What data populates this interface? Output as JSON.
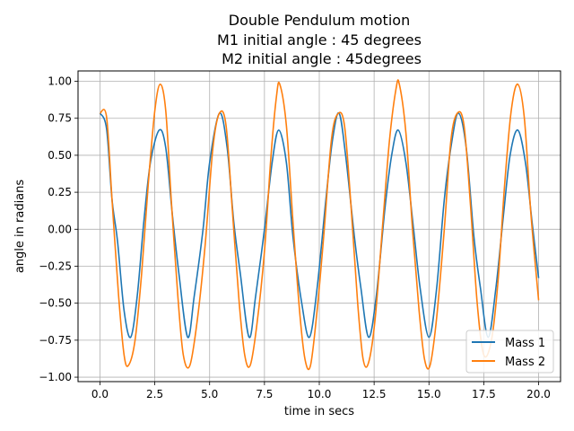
{
  "chart_data": {
    "type": "line",
    "title_lines": [
      "Double Pendulum motion",
      "M1 initial angle : 45 degrees",
      " M2 initial angle : 45degrees"
    ],
    "xlabel": "time in secs",
    "ylabel": "angle in radians",
    "xlim": [
      -1.0,
      21.0
    ],
    "ylim": [
      -1.03,
      1.07
    ],
    "x_ticks": [
      0.0,
      2.5,
      5.0,
      7.5,
      10.0,
      12.5,
      15.0,
      17.5,
      20.0
    ],
    "x_tick_labels": [
      "0.0",
      "2.5",
      "5.0",
      "7.5",
      "10.0",
      "12.5",
      "15.0",
      "17.5",
      "20.0"
    ],
    "y_ticks": [
      -1.0,
      -0.75,
      -0.5,
      -0.25,
      0.0,
      0.25,
      0.5,
      0.75,
      1.0
    ],
    "y_tick_labels": [
      "−1.00",
      "−0.75",
      "−0.50",
      "−0.25",
      "0.00",
      "0.25",
      "0.50",
      "0.75",
      "1.00"
    ],
    "grid": true,
    "legend_position": "lower-right",
    "series": [
      {
        "name": "Mass 1",
        "color": "#1f77b4",
        "points": [
          [
            0.0,
            0.785
          ],
          [
            0.3,
            0.68
          ],
          [
            0.55,
            0.2
          ],
          [
            0.8,
            -0.08
          ],
          [
            1.1,
            -0.55
          ],
          [
            1.4,
            -0.73
          ],
          [
            1.7,
            -0.45
          ],
          [
            2.0,
            0.05
          ],
          [
            2.3,
            0.45
          ],
          [
            2.7,
            0.67
          ],
          [
            3.0,
            0.55
          ],
          [
            3.3,
            0.1
          ],
          [
            3.6,
            -0.3
          ],
          [
            4.0,
            -0.73
          ],
          [
            4.3,
            -0.45
          ],
          [
            4.7,
            0.0
          ],
          [
            5.0,
            0.45
          ],
          [
            5.45,
            0.785
          ],
          [
            5.8,
            0.55
          ],
          [
            6.1,
            0.05
          ],
          [
            6.4,
            -0.3
          ],
          [
            6.8,
            -0.73
          ],
          [
            7.1,
            -0.45
          ],
          [
            7.5,
            0.0
          ],
          [
            7.85,
            0.45
          ],
          [
            8.15,
            0.67
          ],
          [
            8.5,
            0.45
          ],
          [
            8.8,
            -0.05
          ],
          [
            9.2,
            -0.5
          ],
          [
            9.55,
            -0.73
          ],
          [
            9.9,
            -0.4
          ],
          [
            10.3,
            0.2
          ],
          [
            10.6,
            0.6
          ],
          [
            10.9,
            0.785
          ],
          [
            11.2,
            0.5
          ],
          [
            11.6,
            -0.05
          ],
          [
            11.9,
            -0.4
          ],
          [
            12.25,
            -0.73
          ],
          [
            12.6,
            -0.45
          ],
          [
            13.0,
            0.15
          ],
          [
            13.3,
            0.5
          ],
          [
            13.6,
            0.67
          ],
          [
            13.95,
            0.45
          ],
          [
            14.3,
            0.0
          ],
          [
            14.6,
            -0.4
          ],
          [
            15.0,
            -0.73
          ],
          [
            15.35,
            -0.4
          ],
          [
            15.7,
            0.2
          ],
          [
            16.05,
            0.6
          ],
          [
            16.35,
            0.785
          ],
          [
            16.7,
            0.55
          ],
          [
            17.05,
            -0.05
          ],
          [
            17.35,
            -0.4
          ],
          [
            17.7,
            -0.73
          ],
          [
            18.05,
            -0.4
          ],
          [
            18.4,
            0.1
          ],
          [
            18.7,
            0.5
          ],
          [
            19.05,
            0.67
          ],
          [
            19.4,
            0.45
          ],
          [
            19.7,
            0.05
          ],
          [
            20.0,
            -0.33
          ]
        ]
      },
      {
        "name": "Mass 2",
        "color": "#ff7f0e",
        "points": [
          [
            0.0,
            0.785
          ],
          [
            0.3,
            0.76
          ],
          [
            0.55,
            0.2
          ],
          [
            0.85,
            -0.45
          ],
          [
            1.1,
            -0.85
          ],
          [
            1.3,
            -0.92
          ],
          [
            1.6,
            -0.75
          ],
          [
            1.9,
            -0.3
          ],
          [
            2.2,
            0.3
          ],
          [
            2.5,
            0.8
          ],
          [
            2.75,
            0.98
          ],
          [
            3.0,
            0.8
          ],
          [
            3.25,
            0.2
          ],
          [
            3.55,
            -0.45
          ],
          [
            3.8,
            -0.85
          ],
          [
            4.1,
            -0.92
          ],
          [
            4.45,
            -0.6
          ],
          [
            4.8,
            -0.1
          ],
          [
            5.15,
            0.55
          ],
          [
            5.45,
            0.785
          ],
          [
            5.75,
            0.7
          ],
          [
            6.05,
            0.1
          ],
          [
            6.35,
            -0.5
          ],
          [
            6.6,
            -0.85
          ],
          [
            6.85,
            -0.92
          ],
          [
            7.15,
            -0.65
          ],
          [
            7.5,
            -0.15
          ],
          [
            7.8,
            0.5
          ],
          [
            8.05,
            0.9
          ],
          [
            8.2,
            0.98
          ],
          [
            8.5,
            0.7
          ],
          [
            8.8,
            0.05
          ],
          [
            9.1,
            -0.55
          ],
          [
            9.35,
            -0.88
          ],
          [
            9.6,
            -0.92
          ],
          [
            9.9,
            -0.55
          ],
          [
            10.2,
            -0.05
          ],
          [
            10.55,
            0.6
          ],
          [
            10.85,
            0.78
          ],
          [
            11.15,
            0.7
          ],
          [
            11.45,
            0.15
          ],
          [
            11.75,
            -0.5
          ],
          [
            12.0,
            -0.88
          ],
          [
            12.25,
            -0.9
          ],
          [
            12.55,
            -0.6
          ],
          [
            12.9,
            0.05
          ],
          [
            13.2,
            0.6
          ],
          [
            13.5,
            0.95
          ],
          [
            13.65,
            0.98
          ],
          [
            13.95,
            0.65
          ],
          [
            14.25,
            0.0
          ],
          [
            14.55,
            -0.55
          ],
          [
            14.8,
            -0.88
          ],
          [
            15.05,
            -0.92
          ],
          [
            15.35,
            -0.6
          ],
          [
            15.7,
            0.0
          ],
          [
            16.0,
            0.6
          ],
          [
            16.3,
            0.785
          ],
          [
            16.6,
            0.7
          ],
          [
            16.9,
            0.15
          ],
          [
            17.2,
            -0.5
          ],
          [
            17.5,
            -0.85
          ],
          [
            17.85,
            -0.75
          ],
          [
            18.15,
            -0.35
          ],
          [
            18.45,
            0.3
          ],
          [
            18.75,
            0.8
          ],
          [
            19.05,
            0.98
          ],
          [
            19.35,
            0.75
          ],
          [
            19.65,
            0.1
          ],
          [
            20.0,
            -0.48
          ]
        ]
      }
    ]
  }
}
